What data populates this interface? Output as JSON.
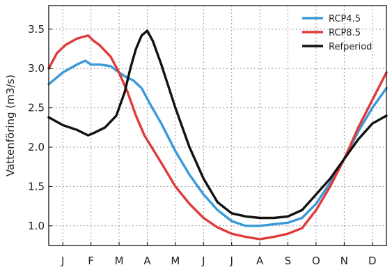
{
  "chart_data": {
    "type": "line",
    "title": "",
    "xlabel": "",
    "ylabel": "Vattenföring (m3/s)",
    "x_range": [
      0,
      12
    ],
    "ylim": [
      0.75,
      3.8
    ],
    "x_ticks": [
      {
        "label": "J",
        "value": 0.5
      },
      {
        "label": "F",
        "value": 1.5
      },
      {
        "label": "M",
        "value": 2.5
      },
      {
        "label": "A",
        "value": 3.5
      },
      {
        "label": "M",
        "value": 4.5
      },
      {
        "label": "J",
        "value": 5.5
      },
      {
        "label": "J",
        "value": 6.5
      },
      {
        "label": "A",
        "value": 7.5
      },
      {
        "label": "S",
        "value": 8.5
      },
      {
        "label": "O",
        "value": 9.5
      },
      {
        "label": "N",
        "value": 10.5
      },
      {
        "label": "D",
        "value": 11.5
      }
    ],
    "y_ticks": [
      {
        "label": "1.0",
        "value": 1.0
      },
      {
        "label": "1.5",
        "value": 1.5
      },
      {
        "label": "2.0",
        "value": 2.0
      },
      {
        "label": "2.5",
        "value": 2.5
      },
      {
        "label": "3.0",
        "value": 3.0
      },
      {
        "label": "3.5",
        "value": 3.5
      }
    ],
    "grid": true,
    "legend_position": "top-right",
    "series": [
      {
        "name": "RCP4.5",
        "color": "#3a9ad9",
        "x": [
          0,
          0.5,
          1,
          1.3,
          1.5,
          1.8,
          2.2,
          2.5,
          2.8,
          3.0,
          3.3,
          3.6,
          4,
          4.5,
          5,
          5.5,
          6,
          6.5,
          7,
          7.5,
          8,
          8.5,
          9,
          9.5,
          10,
          10.5,
          11,
          11.5,
          12
        ],
        "y": [
          2.8,
          2.95,
          3.05,
          3.1,
          3.05,
          3.05,
          3.03,
          2.95,
          2.88,
          2.85,
          2.75,
          2.55,
          2.3,
          1.95,
          1.65,
          1.4,
          1.2,
          1.06,
          1.0,
          1.0,
          1.02,
          1.04,
          1.1,
          1.28,
          1.55,
          1.85,
          2.2,
          2.5,
          2.75
        ]
      },
      {
        "name": "RCP8.5",
        "color": "#e03a3a",
        "x": [
          0,
          0.3,
          0.6,
          1,
          1.4,
          1.6,
          1.8,
          2.2,
          2.5,
          2.8,
          3.1,
          3.4,
          4,
          4.5,
          5,
          5.5,
          6,
          6.5,
          7,
          7.5,
          8,
          8.5,
          9,
          9.5,
          10,
          10.5,
          11,
          11.5,
          12
        ],
        "y": [
          3.0,
          3.2,
          3.3,
          3.38,
          3.42,
          3.35,
          3.3,
          3.15,
          2.95,
          2.7,
          2.4,
          2.15,
          1.8,
          1.5,
          1.28,
          1.1,
          0.98,
          0.9,
          0.86,
          0.83,
          0.86,
          0.9,
          0.97,
          1.2,
          1.5,
          1.85,
          2.25,
          2.6,
          2.95
        ]
      },
      {
        "name": "Refperiod",
        "color": "#111111",
        "x": [
          0,
          0.5,
          1,
          1.4,
          1.6,
          2.0,
          2.4,
          2.7,
          2.9,
          3.1,
          3.3,
          3.5,
          3.7,
          4.0,
          4.5,
          5,
          5.5,
          6,
          6.5,
          7,
          7.5,
          8,
          8.5,
          9,
          9.5,
          10,
          10.5,
          11,
          11.5,
          12
        ],
        "y": [
          2.38,
          2.28,
          2.22,
          2.15,
          2.18,
          2.25,
          2.4,
          2.7,
          3.0,
          3.25,
          3.42,
          3.48,
          3.35,
          3.05,
          2.5,
          2.0,
          1.6,
          1.3,
          1.16,
          1.12,
          1.1,
          1.1,
          1.12,
          1.2,
          1.4,
          1.6,
          1.85,
          2.1,
          2.3,
          2.4
        ]
      }
    ]
  }
}
